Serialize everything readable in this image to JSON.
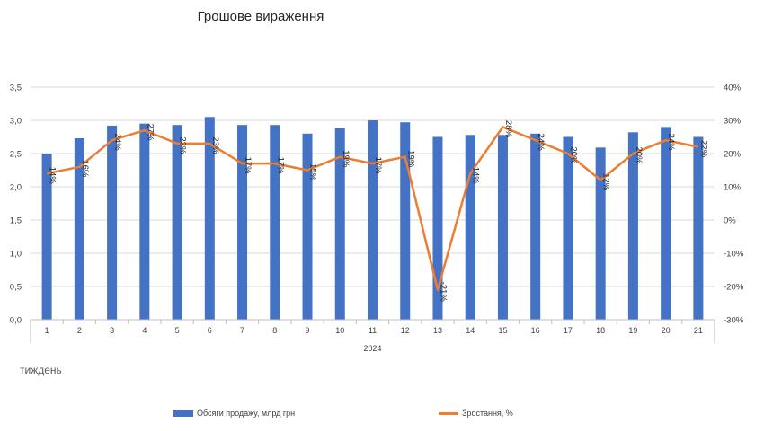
{
  "title": "Грошове вираження",
  "xaxis_note": "тиждень",
  "colors": {
    "bar": "#4472C4",
    "line": "#ED7D31",
    "grid": "#D9D9D9",
    "text": "#404040"
  },
  "legend": {
    "bar_label": "Обсяги продажу, млрд грн",
    "line_label": "Зростання, %"
  },
  "chart_data": {
    "type": "bar",
    "categories": [
      "1",
      "2",
      "3",
      "4",
      "5",
      "6",
      "7",
      "8",
      "9",
      "10",
      "11",
      "12",
      "13",
      "14",
      "15",
      "16",
      "17",
      "18",
      "19",
      "20",
      "21"
    ],
    "category_group": "2024",
    "series": [
      {
        "name": "Обсяги продажу, млрд грн",
        "type": "bar",
        "axis": "left",
        "values": [
          2.5,
          2.73,
          2.92,
          2.95,
          2.93,
          3.05,
          2.93,
          2.93,
          2.8,
          2.88,
          3.0,
          2.97,
          2.75,
          2.78,
          2.78,
          2.8,
          2.75,
          2.59,
          2.82,
          2.9,
          2.75
        ]
      },
      {
        "name": "Зростання, %",
        "type": "line",
        "axis": "right",
        "values": [
          14,
          16,
          24,
          27,
          23,
          23,
          17,
          17,
          15,
          19,
          17,
          19,
          -21,
          14,
          28,
          24,
          20,
          12,
          20,
          24,
          22
        ],
        "labels": [
          "14%",
          "16%",
          "24%",
          "27%",
          "23%",
          "23%",
          "17%",
          "17%",
          "15%",
          "19%",
          "17%",
          "19%",
          "-21%",
          "14%",
          "28%",
          "24%",
          "20%",
          "12%",
          "20%",
          "24%",
          "22%"
        ]
      }
    ],
    "y_left": {
      "min": 0,
      "max": 3.5,
      "step": 0.5,
      "ticks": [
        "0,0",
        "0,5",
        "1,0",
        "1,5",
        "2,0",
        "2,5",
        "3,0",
        "3,5"
      ]
    },
    "y_right": {
      "min": -30,
      "max": 40,
      "step": 10,
      "ticks": [
        "-30%",
        "-20%",
        "-10%",
        "0%",
        "10%",
        "20%",
        "30%",
        "40%"
      ]
    },
    "grid": true,
    "legend_position": "bottom"
  }
}
